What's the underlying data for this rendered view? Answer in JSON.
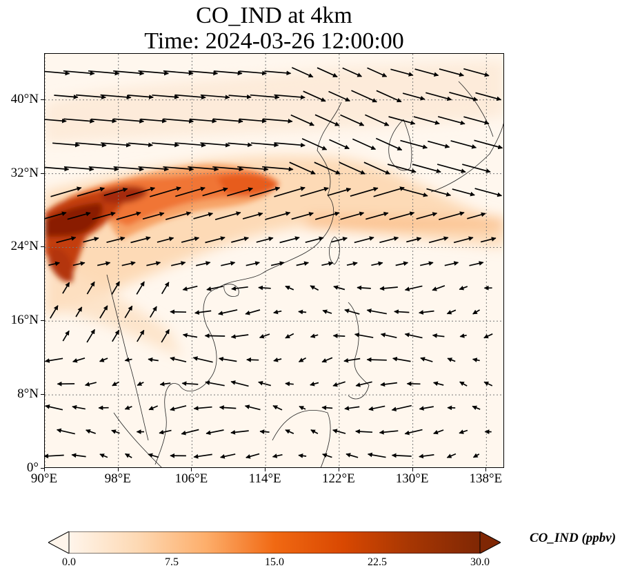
{
  "title": {
    "line1": "CO_IND at 4km",
    "line2": "Time: 2024-03-26 12:00:00"
  },
  "map": {
    "lon_range": [
      90,
      140
    ],
    "lat_range": [
      0,
      45
    ],
    "lat_ticks": [
      {
        "value": 0,
        "label": "0°"
      },
      {
        "value": 8,
        "label": "8°N"
      },
      {
        "value": 16,
        "label": "16°N"
      },
      {
        "value": 24,
        "label": "24°N"
      },
      {
        "value": 32,
        "label": "32°N"
      },
      {
        "value": 40,
        "label": "40°N"
      }
    ],
    "lon_ticks": [
      {
        "value": 90,
        "label": "90°E"
      },
      {
        "value": 98,
        "label": "98°E"
      },
      {
        "value": 106,
        "label": "106°E"
      },
      {
        "value": 114,
        "label": "114°E"
      },
      {
        "value": 122,
        "label": "122°E"
      },
      {
        "value": 130,
        "label": "130°E"
      },
      {
        "value": 138,
        "label": "138°E"
      }
    ],
    "gridlines": true,
    "overlay": "wind vectors"
  },
  "colorbar": {
    "title": "CO_IND (ppbv)",
    "min": 0,
    "max": 30,
    "ticks": [
      "0.0",
      "7.5",
      "15.0",
      "22.5",
      "30.0"
    ],
    "extend": "both",
    "colors": [
      "#fff5eb",
      "#fdd9b4",
      "#fdae6b",
      "#f16913",
      "#d94801",
      "#a63603",
      "#7f2704"
    ]
  }
}
